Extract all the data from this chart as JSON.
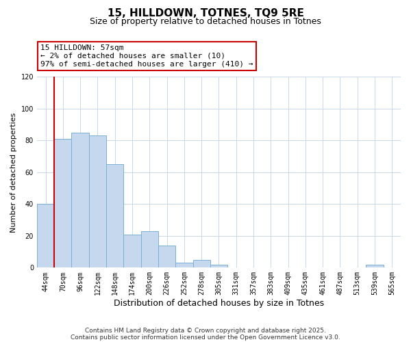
{
  "title": "15, HILLDOWN, TOTNES, TQ9 5RE",
  "subtitle": "Size of property relative to detached houses in Totnes",
  "xlabel": "Distribution of detached houses by size in Totnes",
  "ylabel": "Number of detached properties",
  "categories": [
    "44sqm",
    "70sqm",
    "96sqm",
    "122sqm",
    "148sqm",
    "174sqm",
    "200sqm",
    "226sqm",
    "252sqm",
    "278sqm",
    "305sqm",
    "331sqm",
    "357sqm",
    "383sqm",
    "409sqm",
    "435sqm",
    "461sqm",
    "487sqm",
    "513sqm",
    "539sqm",
    "565sqm"
  ],
  "values": [
    40,
    81,
    85,
    83,
    65,
    21,
    23,
    14,
    3,
    5,
    2,
    0,
    0,
    0,
    0,
    0,
    0,
    0,
    0,
    2,
    0
  ],
  "bar_color": "#c5d8ee",
  "bar_edge_color": "#7aafd4",
  "highlight_line_color": "#cc0000",
  "ylim": [
    0,
    120
  ],
  "yticks": [
    0,
    20,
    40,
    60,
    80,
    100,
    120
  ],
  "annotation_title": "15 HILLDOWN: 57sqm",
  "annotation_line1": "← 2% of detached houses are smaller (10)",
  "annotation_line2": "97% of semi-detached houses are larger (410) →",
  "footer_line1": "Contains HM Land Registry data © Crown copyright and database right 2025.",
  "footer_line2": "Contains public sector information licensed under the Open Government Licence v3.0.",
  "background_color": "#ffffff",
  "grid_color": "#c8d8e8"
}
